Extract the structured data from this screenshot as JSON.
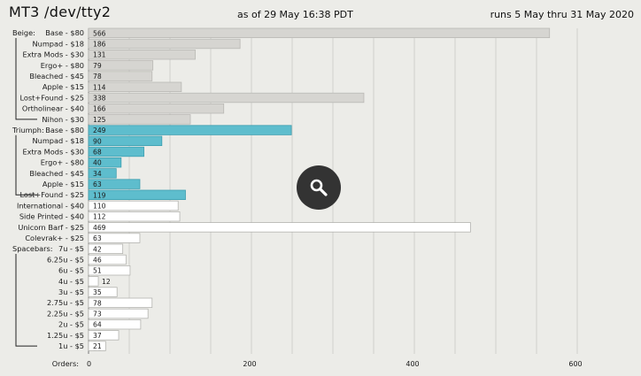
{
  "header": {
    "title": "MT3  /dev/tty2",
    "as_of": "as of 29 May 16:38 PDT",
    "runs": "runs 5 May thru 31 May 2020"
  },
  "colors": {
    "beige_bar": "#d6d5d1",
    "triumph_bar": "#5ebdcd",
    "other_bar": "#ffffff",
    "background": "#ecece8"
  },
  "icons": {
    "zoom": "magnifier-icon"
  },
  "chart_data": {
    "type": "bar",
    "orientation": "horizontal",
    "x_axis_label": "Orders:",
    "xlim": [
      0,
      650
    ],
    "xticks": [
      0,
      200,
      400,
      600
    ],
    "grid": true,
    "groups": [
      {
        "name": "Beige:",
        "color": "beige",
        "items": [
          {
            "label": "Base - $80",
            "value": 566
          },
          {
            "label": "Numpad - $18",
            "value": 186
          },
          {
            "label": "Extra Mods - $30",
            "value": 131
          },
          {
            "label": "Ergo+ - $80",
            "value": 79
          },
          {
            "label": "Bleached - $45",
            "value": 78
          },
          {
            "label": "Apple - $15",
            "value": 114
          },
          {
            "label": "Lost+Found - $25",
            "value": 338
          },
          {
            "label": "Ortholinear - $40",
            "value": 166
          },
          {
            "label": "Nihon - $30",
            "value": 125
          }
        ]
      },
      {
        "name": "Triumph:",
        "color": "triumph",
        "items": [
          {
            "label": "Base - $80",
            "value": 249
          },
          {
            "label": "Numpad - $18",
            "value": 90
          },
          {
            "label": "Extra Mods - $30",
            "value": 68
          },
          {
            "label": "Ergo+ - $80",
            "value": 40
          },
          {
            "label": "Bleached - $45",
            "value": 34
          },
          {
            "label": "Apple - $15",
            "value": 63
          },
          {
            "label": "Lost+Found - $25",
            "value": 119
          }
        ]
      },
      {
        "name": "",
        "color": "other",
        "items": [
          {
            "label": "International - $40",
            "value": 110
          },
          {
            "label": "Side Printed - $40",
            "value": 112
          },
          {
            "label": "Unicorn Barf - $25",
            "value": 469
          },
          {
            "label": "Colevrak+ - $25",
            "value": 63
          }
        ]
      },
      {
        "name": "Spacebars:",
        "color": "other",
        "items": [
          {
            "label": "7u - $5",
            "value": 42
          },
          {
            "label": "6.25u - $5",
            "value": 46
          },
          {
            "label": "6u - $5",
            "value": 51
          },
          {
            "label": "4u - $5",
            "value": 12
          },
          {
            "label": "3u - $5",
            "value": 35
          },
          {
            "label": "2.75u - $5",
            "value": 78
          },
          {
            "label": "2.25u - $5",
            "value": 73
          },
          {
            "label": "2u - $5",
            "value": 64
          },
          {
            "label": "1.25u - $5",
            "value": 37
          },
          {
            "label": "1u - $5",
            "value": 21
          }
        ]
      }
    ]
  }
}
